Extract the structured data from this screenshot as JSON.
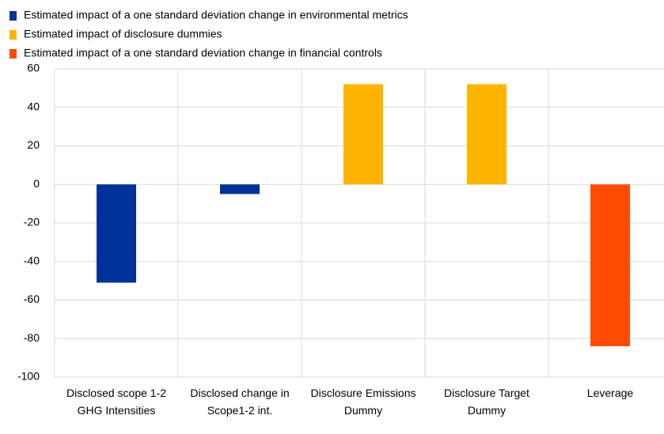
{
  "chart_data": {
    "type": "bar",
    "categories": [
      "Disclosed scope 1-2 GHG Intensities",
      "Disclosed change in Scope1-2 int.",
      "Disclosure Emissions Dummy",
      "Disclosure Target Dummy",
      "Leverage"
    ],
    "series": [
      {
        "name": "Estimated impact of a one standard deviation change in environmental metrics",
        "color": "#003299",
        "values": [
          -51,
          -5,
          null,
          null,
          null
        ]
      },
      {
        "name": "Estimated impact of disclosure dummies",
        "color": "#ffb400",
        "values": [
          null,
          null,
          52,
          52,
          null
        ]
      },
      {
        "name": "Estimated impact of a one standard deviation change in financial controls",
        "color": "#ff4b00",
        "values": [
          null,
          null,
          null,
          null,
          -84
        ]
      }
    ],
    "ylim": [
      -100,
      60
    ],
    "yticks": [
      -100,
      -80,
      -60,
      -40,
      -20,
      0,
      20,
      40,
      60
    ],
    "grid": true
  }
}
